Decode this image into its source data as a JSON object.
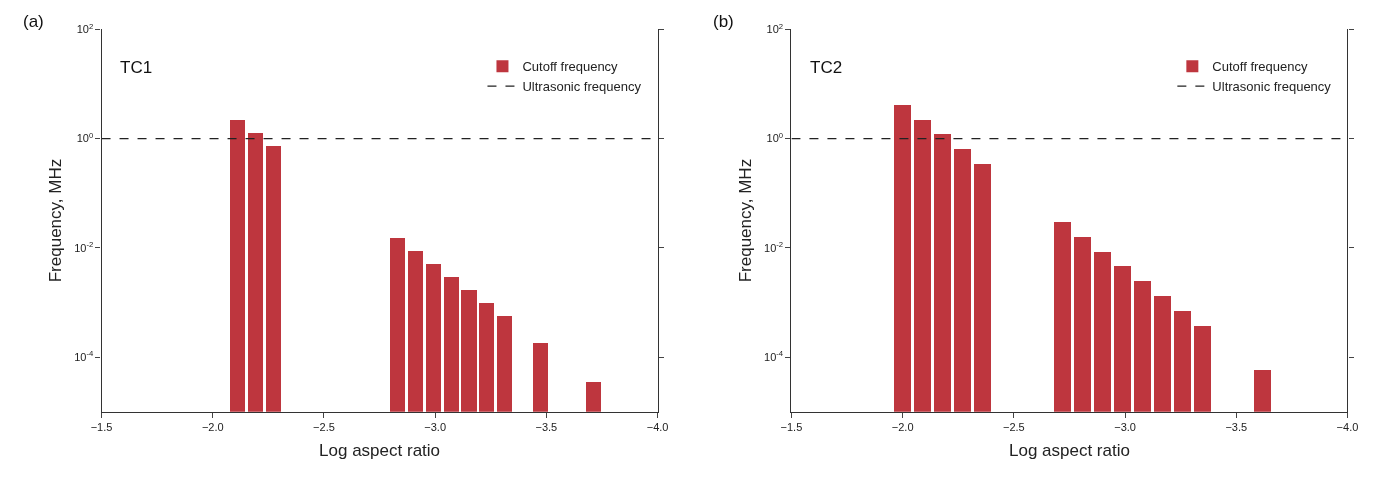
{
  "chart_data": [
    {
      "type": "bar",
      "title": "(a)",
      "annotations": [
        "TC1"
      ],
      "xlabel": "Log aspect ratio",
      "ylabel": "Frequency, MHz",
      "log": "y",
      "legend": "top right",
      "xlim": [
        -1.5,
        -4.0
      ],
      "xticks": [
        {
          "value": -1.5,
          "label": "−1.5"
        },
        {
          "value": -2.0,
          "label": "−2.0"
        },
        {
          "value": -2.5,
          "label": "−2.5"
        },
        {
          "value": -3.0,
          "label": "−3.0"
        },
        {
          "value": -3.5,
          "label": "−3.5"
        },
        {
          "value": -4.0,
          "label": "−4.0"
        }
      ],
      "ylim": [
        1e-05,
        100
      ],
      "yticks": [
        {
          "value": 0.0001,
          "label": "10$^{-4}$"
        },
        {
          "value": 0.01,
          "label": "10$^{-2}$"
        },
        {
          "value": 1,
          "label": "10$^{0}$"
        },
        {
          "value": 100,
          "label": "10$^{2}$"
        }
      ],
      "series": [
        {
          "name": "Cutoff frequency",
          "color": "#be363e",
          "x": [
            -2.11,
            -2.19,
            -2.27,
            -2.83,
            -2.91,
            -2.99,
            -3.07,
            -3.15,
            -3.23,
            -3.31,
            -3.47,
            -3.71
          ],
          "values": [
            2.17,
            1.25,
            0.72,
            0.015,
            0.0087,
            0.005,
            0.0029,
            0.00166,
            0.00095,
            0.00055,
            0.00018,
            3.4e-05
          ]
        }
      ],
      "ref_lines": [
        {
          "axis": "y",
          "value": 1,
          "label": "Ultrasonic frequency",
          "color": "#222222",
          "line_style": "dashed"
        }
      ]
    },
    {
      "type": "bar",
      "title": "(b)",
      "annotations": [
        "TC2"
      ],
      "xlabel": "Log aspect ratio",
      "ylabel": "Frequency, MHz",
      "log": "y",
      "legend": "top right",
      "xlim": [
        -1.5,
        -4.0
      ],
      "xticks": [
        {
          "value": -1.5,
          "label": "−1.5"
        },
        {
          "value": -2.0,
          "label": "−2.0"
        },
        {
          "value": -2.5,
          "label": "−2.5"
        },
        {
          "value": -3.0,
          "label": "−3.0"
        },
        {
          "value": -3.5,
          "label": "−3.5"
        },
        {
          "value": -4.0,
          "label": "−4.0"
        }
      ],
      "ylim": [
        1e-05,
        100
      ],
      "yticks": [
        {
          "value": 0.0001,
          "label": "10$^{-4}$"
        },
        {
          "value": 0.01,
          "label": "10$^{-2}$"
        },
        {
          "value": 1,
          "label": "10$^{0}$"
        },
        {
          "value": 100,
          "label": "10$^{2}$"
        }
      ],
      "series": [
        {
          "name": "Cutoff frequency",
          "color": "#be363e",
          "x": [
            -2.0,
            -2.09,
            -2.18,
            -2.27,
            -2.36,
            -2.72,
            -2.81,
            -2.9,
            -2.99,
            -3.08,
            -3.17,
            -3.26,
            -3.35,
            -3.62
          ],
          "values": [
            4.1,
            2.2,
            1.19,
            0.64,
            0.34,
            0.029,
            0.0155,
            0.0083,
            0.0045,
            0.0024,
            0.0013,
            0.00069,
            0.00037,
            5.8e-05
          ]
        }
      ],
      "ref_lines": [
        {
          "axis": "y",
          "value": 1,
          "label": "Ultrasonic frequency",
          "color": "#222222",
          "line_style": "dashed"
        }
      ]
    }
  ]
}
